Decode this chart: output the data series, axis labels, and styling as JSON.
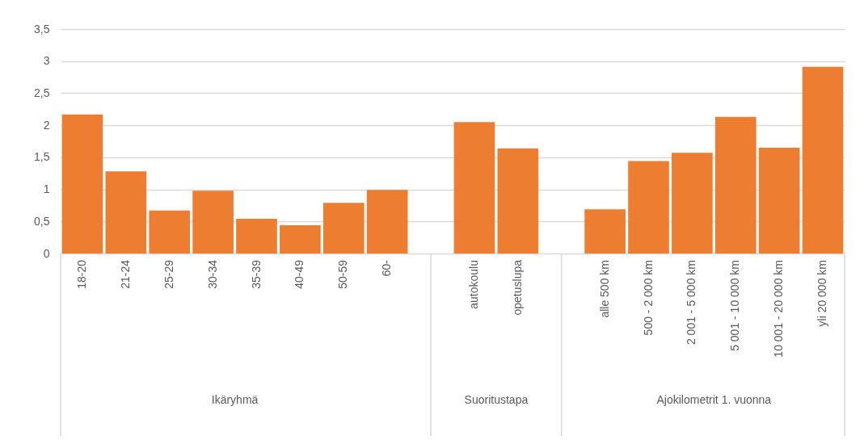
{
  "chart_data": {
    "type": "bar",
    "categories": [
      "18-20",
      "21-24",
      "25-29",
      "30-34",
      "35-39",
      "40-49",
      "50-59",
      "60-",
      null,
      "autokoulu",
      "opetuslupa",
      null,
      "alle 500 km",
      "500 - 2 000 km",
      "2 001 - 5 000 km",
      "5 001 - 10 000 km",
      "10 001 - 20 000 km",
      "yli 20 000 km"
    ],
    "values": [
      2.17,
      1.28,
      0.67,
      0.98,
      0.54,
      0.44,
      0.79,
      0.99,
      null,
      2.05,
      1.64,
      null,
      0.69,
      1.44,
      1.57,
      2.13,
      1.65,
      2.91
    ],
    "color": "#ed7d31",
    "ylim": [
      0,
      3.5
    ],
    "yticks": [
      0,
      {
        "value": 0.5,
        "label": "0,5"
      },
      1,
      {
        "value": 1.5,
        "label": "1,5"
      },
      2,
      {
        "value": 2.5,
        "label": "2,5"
      },
      3,
      {
        "value": 3.5,
        "label": "3,5"
      }
    ],
    "grid": "y",
    "annotations": [
      "Ikäryhmä",
      "Suoritustapa",
      "Ajokilometrit 1. vuonna"
    ]
  }
}
